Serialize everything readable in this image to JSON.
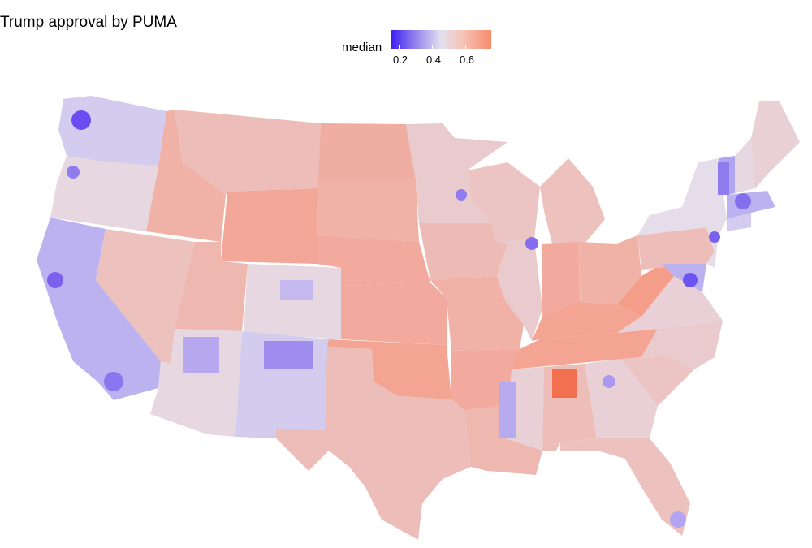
{
  "title": "Trump approval by PUMA",
  "legend": {
    "label": "median",
    "ticks": [
      "0.2",
      "0.4",
      "0.6"
    ],
    "scale_min_color": "#3b1cf5",
    "scale_mid_color": "#e4e0ee",
    "scale_max_color": "#f98b6d"
  },
  "map": {
    "region": "contiguous United States",
    "unit": "PUMA",
    "state_values": [
      {
        "state": "WA",
        "value": 0.42
      },
      {
        "state": "OR",
        "value": 0.48
      },
      {
        "state": "CA",
        "value": 0.38
      },
      {
        "state": "ID",
        "value": 0.6
      },
      {
        "state": "NV",
        "value": 0.55
      },
      {
        "state": "MT",
        "value": 0.56
      },
      {
        "state": "WY",
        "value": 0.63
      },
      {
        "state": "UT",
        "value": 0.58
      },
      {
        "state": "AZ",
        "value": 0.48
      },
      {
        "state": "CO",
        "value": 0.48
      },
      {
        "state": "NM",
        "value": 0.42
      },
      {
        "state": "ND",
        "value": 0.61
      },
      {
        "state": "SD",
        "value": 0.6
      },
      {
        "state": "NE",
        "value": 0.62
      },
      {
        "state": "KS",
        "value": 0.62
      },
      {
        "state": "OK",
        "value": 0.64
      },
      {
        "state": "TX",
        "value": 0.56
      },
      {
        "state": "MN",
        "value": 0.52
      },
      {
        "state": "IA",
        "value": 0.57
      },
      {
        "state": "MO",
        "value": 0.6
      },
      {
        "state": "AR",
        "value": 0.62
      },
      {
        "state": "LA",
        "value": 0.58
      },
      {
        "state": "WI",
        "value": 0.54
      },
      {
        "state": "IL",
        "value": 0.52
      },
      {
        "state": "MI",
        "value": 0.55
      },
      {
        "state": "IN",
        "value": 0.62
      },
      {
        "state": "OH",
        "value": 0.6
      },
      {
        "state": "KY",
        "value": 0.64
      },
      {
        "state": "TN",
        "value": 0.64
      },
      {
        "state": "MS",
        "value": 0.5
      },
      {
        "state": "AL",
        "value": 0.56
      },
      {
        "state": "GA",
        "value": 0.5
      },
      {
        "state": "FL",
        "value": 0.55
      },
      {
        "state": "SC",
        "value": 0.54
      },
      {
        "state": "NC",
        "value": 0.52
      },
      {
        "state": "VA",
        "value": 0.5
      },
      {
        "state": "WV",
        "value": 0.66
      },
      {
        "state": "PA",
        "value": 0.56
      },
      {
        "state": "NY",
        "value": 0.46
      },
      {
        "state": "VT",
        "value": 0.36
      },
      {
        "state": "NH",
        "value": 0.48
      },
      {
        "state": "ME",
        "value": 0.5
      },
      {
        "state": "MA",
        "value": 0.38
      },
      {
        "state": "CT",
        "value": 0.42
      },
      {
        "state": "NJ",
        "value": 0.46
      },
      {
        "state": "MD",
        "value": 0.38
      }
    ]
  }
}
